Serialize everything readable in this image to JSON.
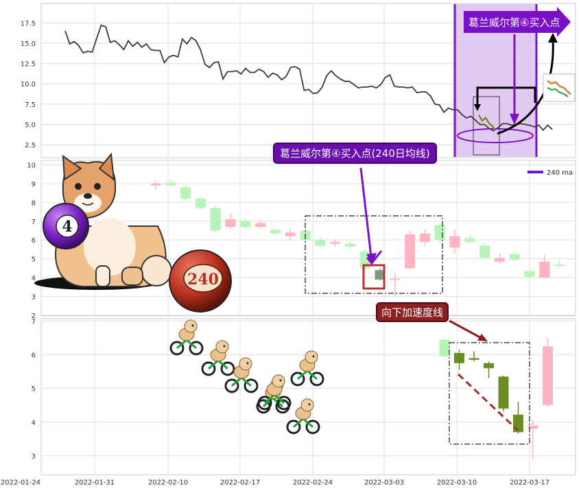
{
  "x_axis": {
    "tick_labels": [
      "2022-01-24",
      "2022-01-31",
      "2022-02-10",
      "2022-02-17",
      "2022-02-24",
      "2022-03-03",
      "2022-03-10",
      "2022-03-17"
    ]
  },
  "colors": {
    "line": "#3a3a3a",
    "highlight_band": "#d9b8f2",
    "highlight_edge": "#7a10c8",
    "up_candle": "#ffb3c1",
    "down_candle": "#b7f5b7",
    "accel_candle": "#6b8e23",
    "box_dash": "#444444",
    "accel_line": "#a52a2a",
    "callout_purple": "#6a0dad",
    "callout_brown": "#8b2020"
  },
  "annotations": {
    "top_callout": "葛兰威尔第④买入点",
    "mid_callout": "葛兰威尔第④买入点(240日均线)",
    "bottom_callout": "向下加速度线",
    "ball_4_label": "4",
    "ball_240_label": "240"
  },
  "chart_data": [
    {
      "type": "line",
      "ylim": [
        1.0,
        19.8
      ],
      "yticks": [
        2.5,
        5.0,
        7.5,
        10.0,
        12.5,
        15.0,
        17.5
      ],
      "series": [
        {
          "values": [
            16.5,
            14.9,
            15.2,
            14.7,
            13.8,
            14.0,
            13.9,
            15.6,
            17.2,
            17.0,
            15.1,
            15.3,
            14.8,
            14.2,
            15.3,
            14.6,
            15.1,
            14.5,
            14.9,
            14.2,
            14.1,
            14.1,
            12.6,
            13.3,
            13.5,
            13.3,
            15.5,
            14.9,
            15.7,
            15.3,
            14.2,
            12.4,
            12.0,
            12.6,
            12.7,
            10.6,
            11.5,
            11.5,
            11.6,
            11.2,
            11.9,
            11.4,
            11.4,
            11.8,
            11.5,
            10.8,
            11.3,
            11.1,
            10.5,
            10.9,
            12.0,
            12.1,
            11.8,
            9.2,
            9.3,
            8.8,
            8.9,
            9.6,
            11.0,
            11.6,
            11.0,
            10.6,
            10.3,
            10.3,
            9.9,
            9.5,
            9.6,
            9.6,
            9.7,
            9.5,
            9.9,
            10.8,
            11.1,
            9.7,
            9.6,
            9.6,
            9.5,
            9.6,
            8.9,
            9.0,
            9.0,
            8.5,
            7.5,
            7.4,
            6.5,
            7.0,
            6.8,
            6.8,
            6.2,
            5.8,
            6.0,
            5.5,
            5.0,
            5.0,
            4.5,
            4.2,
            4.6,
            5.1,
            5.1,
            4.9,
            5.0,
            5.1,
            5.0,
            4.9,
            4.7,
            4.9,
            4.3,
            4.9,
            4.4
          ]
        }
      ]
    },
    {
      "type": "bar",
      "ylim": [
        2.0,
        10.2
      ],
      "yticks": [
        2,
        3,
        4,
        5,
        6,
        7,
        8,
        9,
        10
      ],
      "series": [
        {
          "values": [
            {
              "o": 8.9,
              "c": 9.0,
              "h": 9.15,
              "l": 8.7
            },
            {
              "o": 9.05,
              "c": 8.9,
              "h": 9.2,
              "l": 8.85
            },
            {
              "o": 8.8,
              "c": 8.2,
              "h": 8.9,
              "l": 8.1
            },
            {
              "o": 8.2,
              "c": 7.7,
              "h": 8.3,
              "l": 7.6
            },
            {
              "o": 7.7,
              "c": 6.5,
              "h": 7.8,
              "l": 6.4
            },
            {
              "o": 6.7,
              "c": 7.1,
              "h": 7.4,
              "l": 6.6
            },
            {
              "o": 7.0,
              "c": 6.7,
              "h": 7.15,
              "l": 6.6
            },
            {
              "o": 6.7,
              "c": 6.9,
              "h": 7.05,
              "l": 6.6
            },
            {
              "o": 6.55,
              "c": 6.35,
              "h": 6.6,
              "l": 6.25
            },
            {
              "o": 6.2,
              "c": 6.4,
              "h": 6.6,
              "l": 6.0
            },
            {
              "o": 6.5,
              "c": 6.0,
              "h": 6.65,
              "l": 5.9
            },
            {
              "o": 6.0,
              "c": 5.7,
              "h": 6.15,
              "l": 5.6
            },
            {
              "o": 5.8,
              "c": 5.9,
              "h": 6.05,
              "l": 5.65
            },
            {
              "o": 5.8,
              "c": 5.65,
              "h": 5.9,
              "l": 5.55
            },
            {
              "o": 5.4,
              "c": 4.5,
              "h": 5.5,
              "l": 4.4
            },
            {
              "o": 4.4,
              "c": 3.9,
              "h": 4.5,
              "l": 3.85
            },
            {
              "o": 3.9,
              "c": 3.95,
              "h": 4.25,
              "l": 3.0
            },
            {
              "o": 4.5,
              "c": 6.3,
              "h": 6.5,
              "l": 4.45
            },
            {
              "o": 5.9,
              "c": 6.35,
              "h": 6.55,
              "l": 5.7
            },
            {
              "o": 6.8,
              "c": 6.0,
              "h": 6.9,
              "l": 5.85
            },
            {
              "o": 5.6,
              "c": 6.2,
              "h": 6.55,
              "l": 5.3
            },
            {
              "o": 6.1,
              "c": 5.9,
              "h": 6.3,
              "l": 5.8
            },
            {
              "o": 5.7,
              "c": 5.05,
              "h": 5.85,
              "l": 5.0
            },
            {
              "o": 4.85,
              "c": 5.05,
              "h": 5.3,
              "l": 4.75
            },
            {
              "o": 5.25,
              "c": 4.95,
              "h": 5.35,
              "l": 4.85
            },
            {
              "o": 4.35,
              "c": 4.05,
              "h": 4.45,
              "l": 3.8
            },
            {
              "o": 4.0,
              "c": 4.85,
              "h": 5.2,
              "l": 3.95
            },
            {
              "o": 4.7,
              "c": 4.65,
              "h": 4.95,
              "l": 4.5
            }
          ]
        }
      ],
      "legend": {
        "label": "240 ma",
        "position": "top-right"
      }
    },
    {
      "type": "bar",
      "ylim": [
        2.45,
        7.05
      ],
      "yticks": [
        3,
        4,
        5,
        6,
        7
      ],
      "series": [
        {
          "values": [
            {
              "o": 6.45,
              "c": 5.95,
              "h": 6.5,
              "l": 5.9
            },
            {
              "o": 6.05,
              "c": 5.75,
              "h": 6.15,
              "l": 5.55
            },
            {
              "o": 5.9,
              "c": 5.85,
              "h": 6.1,
              "l": 5.8
            },
            {
              "o": 5.75,
              "c": 5.6,
              "h": 5.8,
              "l": 5.3
            },
            {
              "o": 5.35,
              "c": 4.4,
              "h": 5.38,
              "l": 4.32
            },
            {
              "o": 4.22,
              "c": 3.7,
              "h": 4.6,
              "l": 3.65
            },
            {
              "o": 3.8,
              "c": 3.9,
              "h": 4.05,
              "l": 2.9
            },
            {
              "o": 4.5,
              "c": 6.25,
              "h": 6.5,
              "l": 4.45
            }
          ]
        }
      ]
    }
  ]
}
